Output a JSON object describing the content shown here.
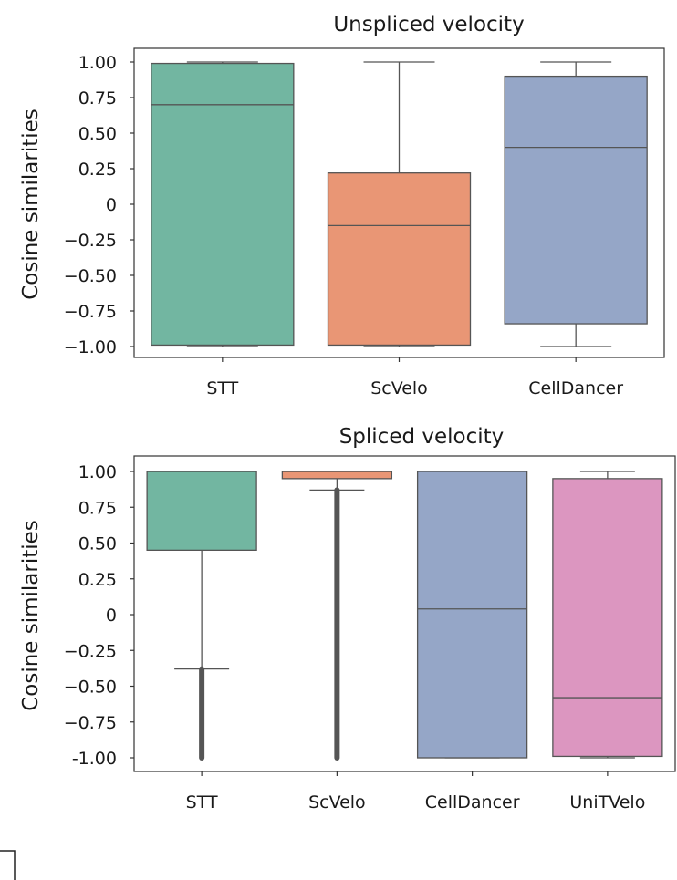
{
  "chart_data": [
    {
      "type": "box",
      "title": "Unspliced velocity",
      "ylabel": "Cosine similarities",
      "xlabel": "",
      "ylim": [
        -1.0,
        1.0
      ],
      "yticks": [
        1.0,
        0.75,
        0.5,
        0.25,
        0,
        -0.25,
        -0.5,
        -0.75,
        -1.0
      ],
      "ytick_labels": [
        "1.00",
        "0.75",
        "0.50",
        "0.25",
        "0",
        "−0.25",
        "−0.50",
        "−0.75",
        "−1.00"
      ],
      "categories": [
        "STT",
        "ScVelo",
        "CellDancer"
      ],
      "boxes": [
        {
          "name": "STT",
          "color": "#72b6a1",
          "whisker_low": -1.0,
          "q1": -0.99,
          "median": 0.7,
          "q3": 0.99,
          "whisker_high": 1.0,
          "outliers": []
        },
        {
          "name": "ScVelo",
          "color": "#e99675",
          "whisker_low": -1.0,
          "q1": -0.99,
          "median": -0.15,
          "q3": 0.22,
          "whisker_high": 1.0,
          "outliers": []
        },
        {
          "name": "CellDancer",
          "color": "#95a6c7",
          "whisker_low": -1.0,
          "q1": -0.84,
          "median": 0.4,
          "q3": 0.9,
          "whisker_high": 1.0,
          "outliers": []
        }
      ]
    },
    {
      "type": "box",
      "title": "Spliced velocity",
      "ylabel": "Cosine similarities",
      "xlabel": "",
      "ylim": [
        -1.0,
        1.0
      ],
      "yticks": [
        1.0,
        0.75,
        0.5,
        0.25,
        0,
        -0.25,
        -0.5,
        -0.75,
        -1.0
      ],
      "ytick_labels": [
        "1.00",
        "0.75",
        "0.50",
        "0.25",
        "0",
        "−0.25",
        "−0.50",
        "−0.75",
        "-1.00"
      ],
      "categories": [
        "STT",
        "ScVelo",
        "CellDancer",
        "UniTVelo"
      ],
      "boxes": [
        {
          "name": "STT",
          "color": "#72b6a1",
          "whisker_low": -0.38,
          "q1": 0.45,
          "median": 1.0,
          "q3": 1.0,
          "whisker_high": 1.0,
          "outlier_range": [
            -1.0,
            -0.38
          ]
        },
        {
          "name": "ScVelo",
          "color": "#e99675",
          "whisker_low": 0.87,
          "q1": 0.95,
          "median": 1.0,
          "q3": 1.0,
          "whisker_high": 1.0,
          "outlier_range": [
            -1.0,
            0.87
          ]
        },
        {
          "name": "CellDancer",
          "color": "#95a6c7",
          "whisker_low": -1.0,
          "q1": -1.0,
          "median": 0.04,
          "q3": 1.0,
          "whisker_high": 1.0,
          "outliers": []
        },
        {
          "name": "UniTVelo",
          "color": "#dc96c0",
          "whisker_low": -1.0,
          "q1": -0.99,
          "median": -0.58,
          "q3": 0.95,
          "whisker_high": 1.0,
          "outliers": []
        }
      ]
    }
  ]
}
